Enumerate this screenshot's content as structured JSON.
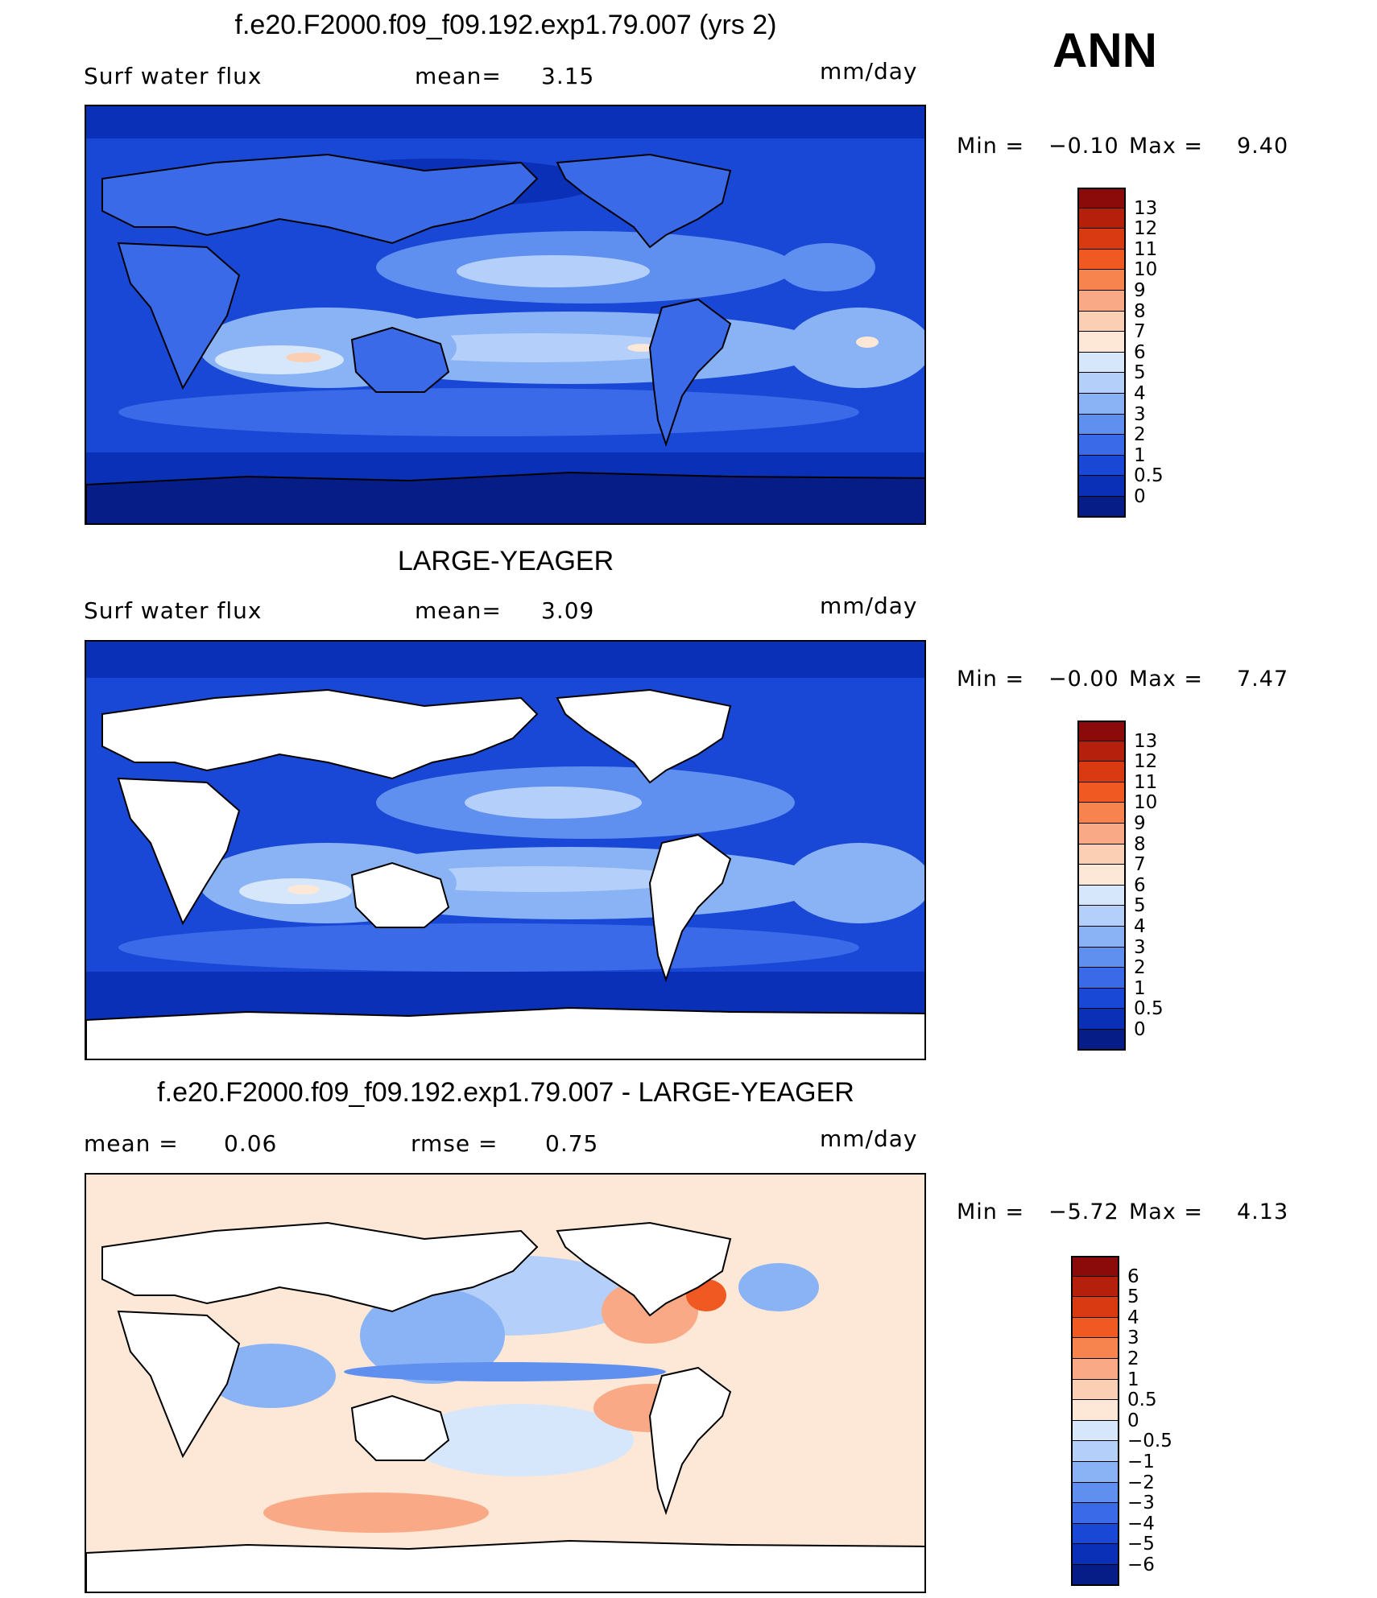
{
  "season": "ANN",
  "panels": [
    {
      "title": "f.e20.F2000.f09_f09.192.exp1.79.007 (yrs 2)",
      "left_label": "Surf  water  flux",
      "mid_label": "mean=",
      "mid_value": "3.15",
      "units": "mm/day",
      "min_label": "Min  =",
      "min_value": "−0.10",
      "max_label": "Max  =",
      "max_value": "9.40",
      "land_masked": false,
      "colorbar": {
        "labels": [
          "13",
          "12",
          "11",
          "10",
          "9",
          "8",
          "7",
          "6",
          "5",
          "4",
          "3",
          "2",
          "1",
          "0.5",
          "0"
        ],
        "colors": [
          "#8b0a0a",
          "#b5200c",
          "#d93a12",
          "#f05a22",
          "#f7844f",
          "#f9a985",
          "#fbcfb3",
          "#fde7d6",
          "#d7e7fb",
          "#b4d0fa",
          "#8ab3f5",
          "#5f90ef",
          "#3a6ae8",
          "#1a48d6",
          "#0a30b8",
          "#061c86"
        ]
      }
    },
    {
      "title": "LARGE-YEAGER",
      "left_label": "Surf  water  flux",
      "mid_label": "mean=",
      "mid_value": "3.09",
      "units": "mm/day",
      "min_label": "Min  =",
      "min_value": "−0.00",
      "max_label": "Max  =",
      "max_value": "7.47",
      "land_masked": true,
      "colorbar": {
        "labels": [
          "13",
          "12",
          "11",
          "10",
          "9",
          "8",
          "7",
          "6",
          "5",
          "4",
          "3",
          "2",
          "1",
          "0.5",
          "0"
        ],
        "colors": [
          "#8b0a0a",
          "#b5200c",
          "#d93a12",
          "#f05a22",
          "#f7844f",
          "#f9a985",
          "#fbcfb3",
          "#fde7d6",
          "#d7e7fb",
          "#b4d0fa",
          "#8ab3f5",
          "#5f90ef",
          "#3a6ae8",
          "#1a48d6",
          "#0a30b8",
          "#061c86"
        ]
      }
    },
    {
      "title": "f.e20.F2000.f09_f09.192.exp1.79.007 - LARGE-YEAGER",
      "left_label": "mean  =",
      "left_value": "0.06",
      "mid_label": "rmse  =",
      "mid_value": "0.75",
      "units": "mm/day",
      "min_label": "Min  =",
      "min_value": "−5.72",
      "max_label": "Max  =",
      "max_value": "4.13",
      "land_masked": true,
      "colorbar": {
        "labels": [
          "6",
          "5",
          "4",
          "3",
          "2",
          "1",
          "0.5",
          "0",
          "−0.5",
          "−1",
          "−2",
          "−3",
          "−4",
          "−5",
          "−6"
        ],
        "colors": [
          "#8b0a0a",
          "#b5200c",
          "#d93a12",
          "#f05a22",
          "#f7844f",
          "#f9a985",
          "#fbcfb3",
          "#fde7d6",
          "#d7e7fb",
          "#b4d0fa",
          "#8ab3f5",
          "#5f90ef",
          "#3a6ae8",
          "#1a48d6",
          "#0a30b8",
          "#061c86"
        ]
      }
    }
  ]
}
